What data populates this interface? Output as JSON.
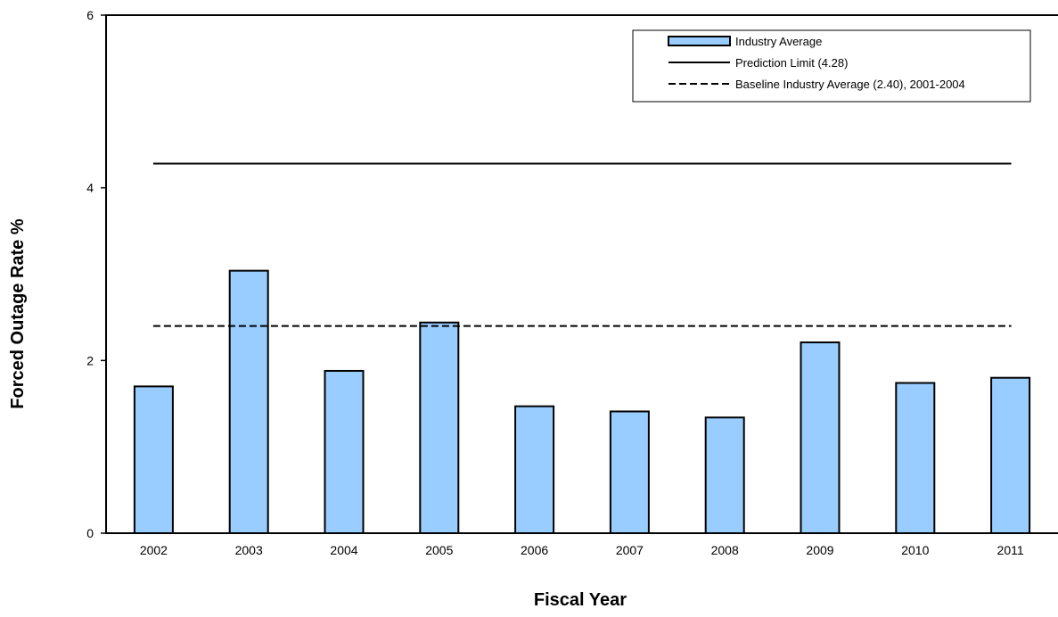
{
  "chart_data": {
    "type": "bar",
    "xlabel": "Fiscal Year",
    "ylabel": "Forced Outage Rate %",
    "ylim": [
      0,
      6
    ],
    "yticks": [
      0,
      2,
      4,
      6
    ],
    "grid": false,
    "legend_position": "top-right",
    "categories": [
      "2002",
      "2003",
      "2004",
      "2005",
      "2006",
      "2007",
      "2008",
      "2009",
      "2010",
      "2011"
    ],
    "series": [
      {
        "name": "Industry Average",
        "type": "bar",
        "color": "#99ccff",
        "values": [
          1.7,
          3.04,
          1.88,
          2.44,
          1.47,
          1.41,
          1.34,
          2.21,
          1.74,
          1.8
        ]
      }
    ],
    "reference_lines": [
      {
        "name": "Prediction Limit (4.28)",
        "value": 4.28,
        "style": "solid",
        "color": "#000000"
      },
      {
        "name": "Baseline Industry Average (2.40), 2001-2004",
        "value": 2.4,
        "style": "dashed",
        "color": "#000000"
      }
    ]
  }
}
